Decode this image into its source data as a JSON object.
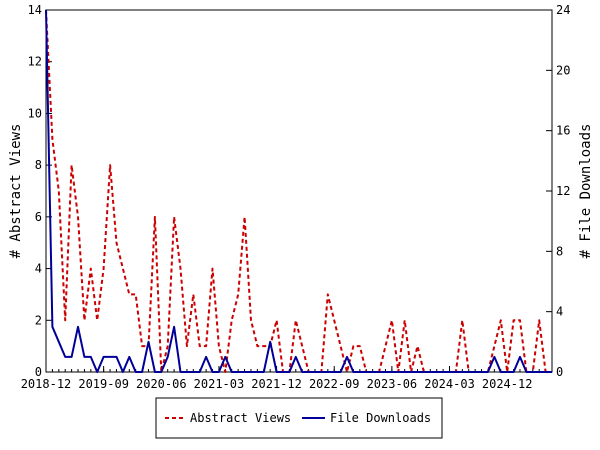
{
  "chart_data": {
    "type": "line",
    "title": "",
    "x_tick_labels": [
      "2018-12",
      "2019-09",
      "2020-06",
      "2021-03",
      "2021-12",
      "2022-09",
      "2023-06",
      "2024-03",
      "2024-12"
    ],
    "x_tick_months": [
      0,
      9,
      18,
      27,
      36,
      45,
      54,
      63,
      72
    ],
    "x_range_months": [
      0,
      79
    ],
    "y_left": {
      "label": "# Abstract Views",
      "range": [
        0,
        14
      ],
      "ticks": [
        "0",
        "2",
        "4",
        "6",
        "8",
        "10",
        "12",
        "14"
      ]
    },
    "y_right": {
      "label": "# File Downloads",
      "range": [
        0,
        24
      ],
      "ticks": [
        "0",
        "4",
        "8",
        "12",
        "16",
        "20",
        "24"
      ]
    },
    "legend": {
      "position": "bottom"
    },
    "colors": {
      "abstract_views": "#cc0000",
      "file_downloads": "#000099"
    },
    "series": [
      {
        "name": "Abstract Views",
        "axis": "left",
        "style": "dashed",
        "x": [
          0,
          1,
          2,
          3,
          4,
          5,
          6,
          7,
          8,
          9,
          10,
          11,
          12,
          13,
          14,
          15,
          16,
          17,
          18,
          19,
          20,
          21,
          22,
          23,
          24,
          25,
          26,
          27,
          28,
          29,
          30,
          31,
          32,
          33,
          34,
          35,
          36,
          37,
          38,
          39,
          40,
          41,
          42,
          43,
          44,
          45,
          46,
          47,
          48,
          49,
          50,
          51,
          52,
          53,
          54,
          55,
          56,
          57,
          58,
          59,
          60,
          61,
          62,
          63,
          64,
          65,
          66,
          67,
          68,
          69,
          70,
          71,
          72,
          73,
          74,
          75,
          76,
          77,
          78,
          79
        ],
        "values": [
          14,
          9,
          7,
          2,
          8,
          6,
          2,
          4,
          2,
          4,
          8,
          5,
          4,
          3,
          3,
          1,
          1,
          6,
          0,
          1,
          6,
          4,
          1,
          3,
          1,
          1,
          4,
          1,
          0,
          2,
          3,
          6,
          2,
          1,
          1,
          1,
          2,
          0,
          0,
          2,
          1,
          0,
          0,
          0,
          3,
          2,
          1,
          0,
          1,
          1,
          0,
          0,
          0,
          1,
          2,
          0,
          2,
          0,
          1,
          0,
          0,
          0,
          0,
          0,
          0,
          2,
          0,
          0,
          0,
          0,
          1,
          2,
          0,
          2,
          2,
          0,
          0,
          2,
          0,
          0
        ]
      },
      {
        "name": "File Downloads",
        "axis": "right",
        "style": "solid",
        "x": [
          0,
          1,
          2,
          3,
          4,
          5,
          6,
          7,
          8,
          9,
          10,
          11,
          12,
          13,
          14,
          15,
          16,
          17,
          18,
          19,
          20,
          21,
          22,
          23,
          24,
          25,
          26,
          27,
          28,
          29,
          30,
          31,
          32,
          33,
          34,
          35,
          36,
          37,
          38,
          39,
          40,
          41,
          42,
          43,
          44,
          45,
          46,
          47,
          48,
          49,
          50,
          51,
          52,
          53,
          54,
          55,
          56,
          57,
          58,
          59,
          60,
          61,
          62,
          63,
          64,
          65,
          66,
          67,
          68,
          69,
          70,
          71,
          72,
          73,
          74,
          75,
          76,
          77,
          78,
          79
        ],
        "values": [
          24,
          3,
          2,
          1,
          1,
          3,
          1,
          1,
          0,
          1,
          1,
          1,
          0,
          1,
          0,
          0,
          2,
          0,
          0,
          1,
          3,
          0,
          0,
          0,
          0,
          1,
          0,
          0,
          1,
          0,
          0,
          0,
          0,
          0,
          0,
          2,
          0,
          0,
          0,
          1,
          0,
          0,
          0,
          0,
          0,
          0,
          0,
          1,
          0,
          0,
          0,
          0,
          0,
          0,
          0,
          0,
          0,
          0,
          0,
          0,
          0,
          0,
          0,
          0,
          0,
          0,
          0,
          0,
          0,
          0,
          1,
          0,
          0,
          0,
          1,
          0,
          0,
          0,
          0,
          0
        ]
      }
    ]
  }
}
